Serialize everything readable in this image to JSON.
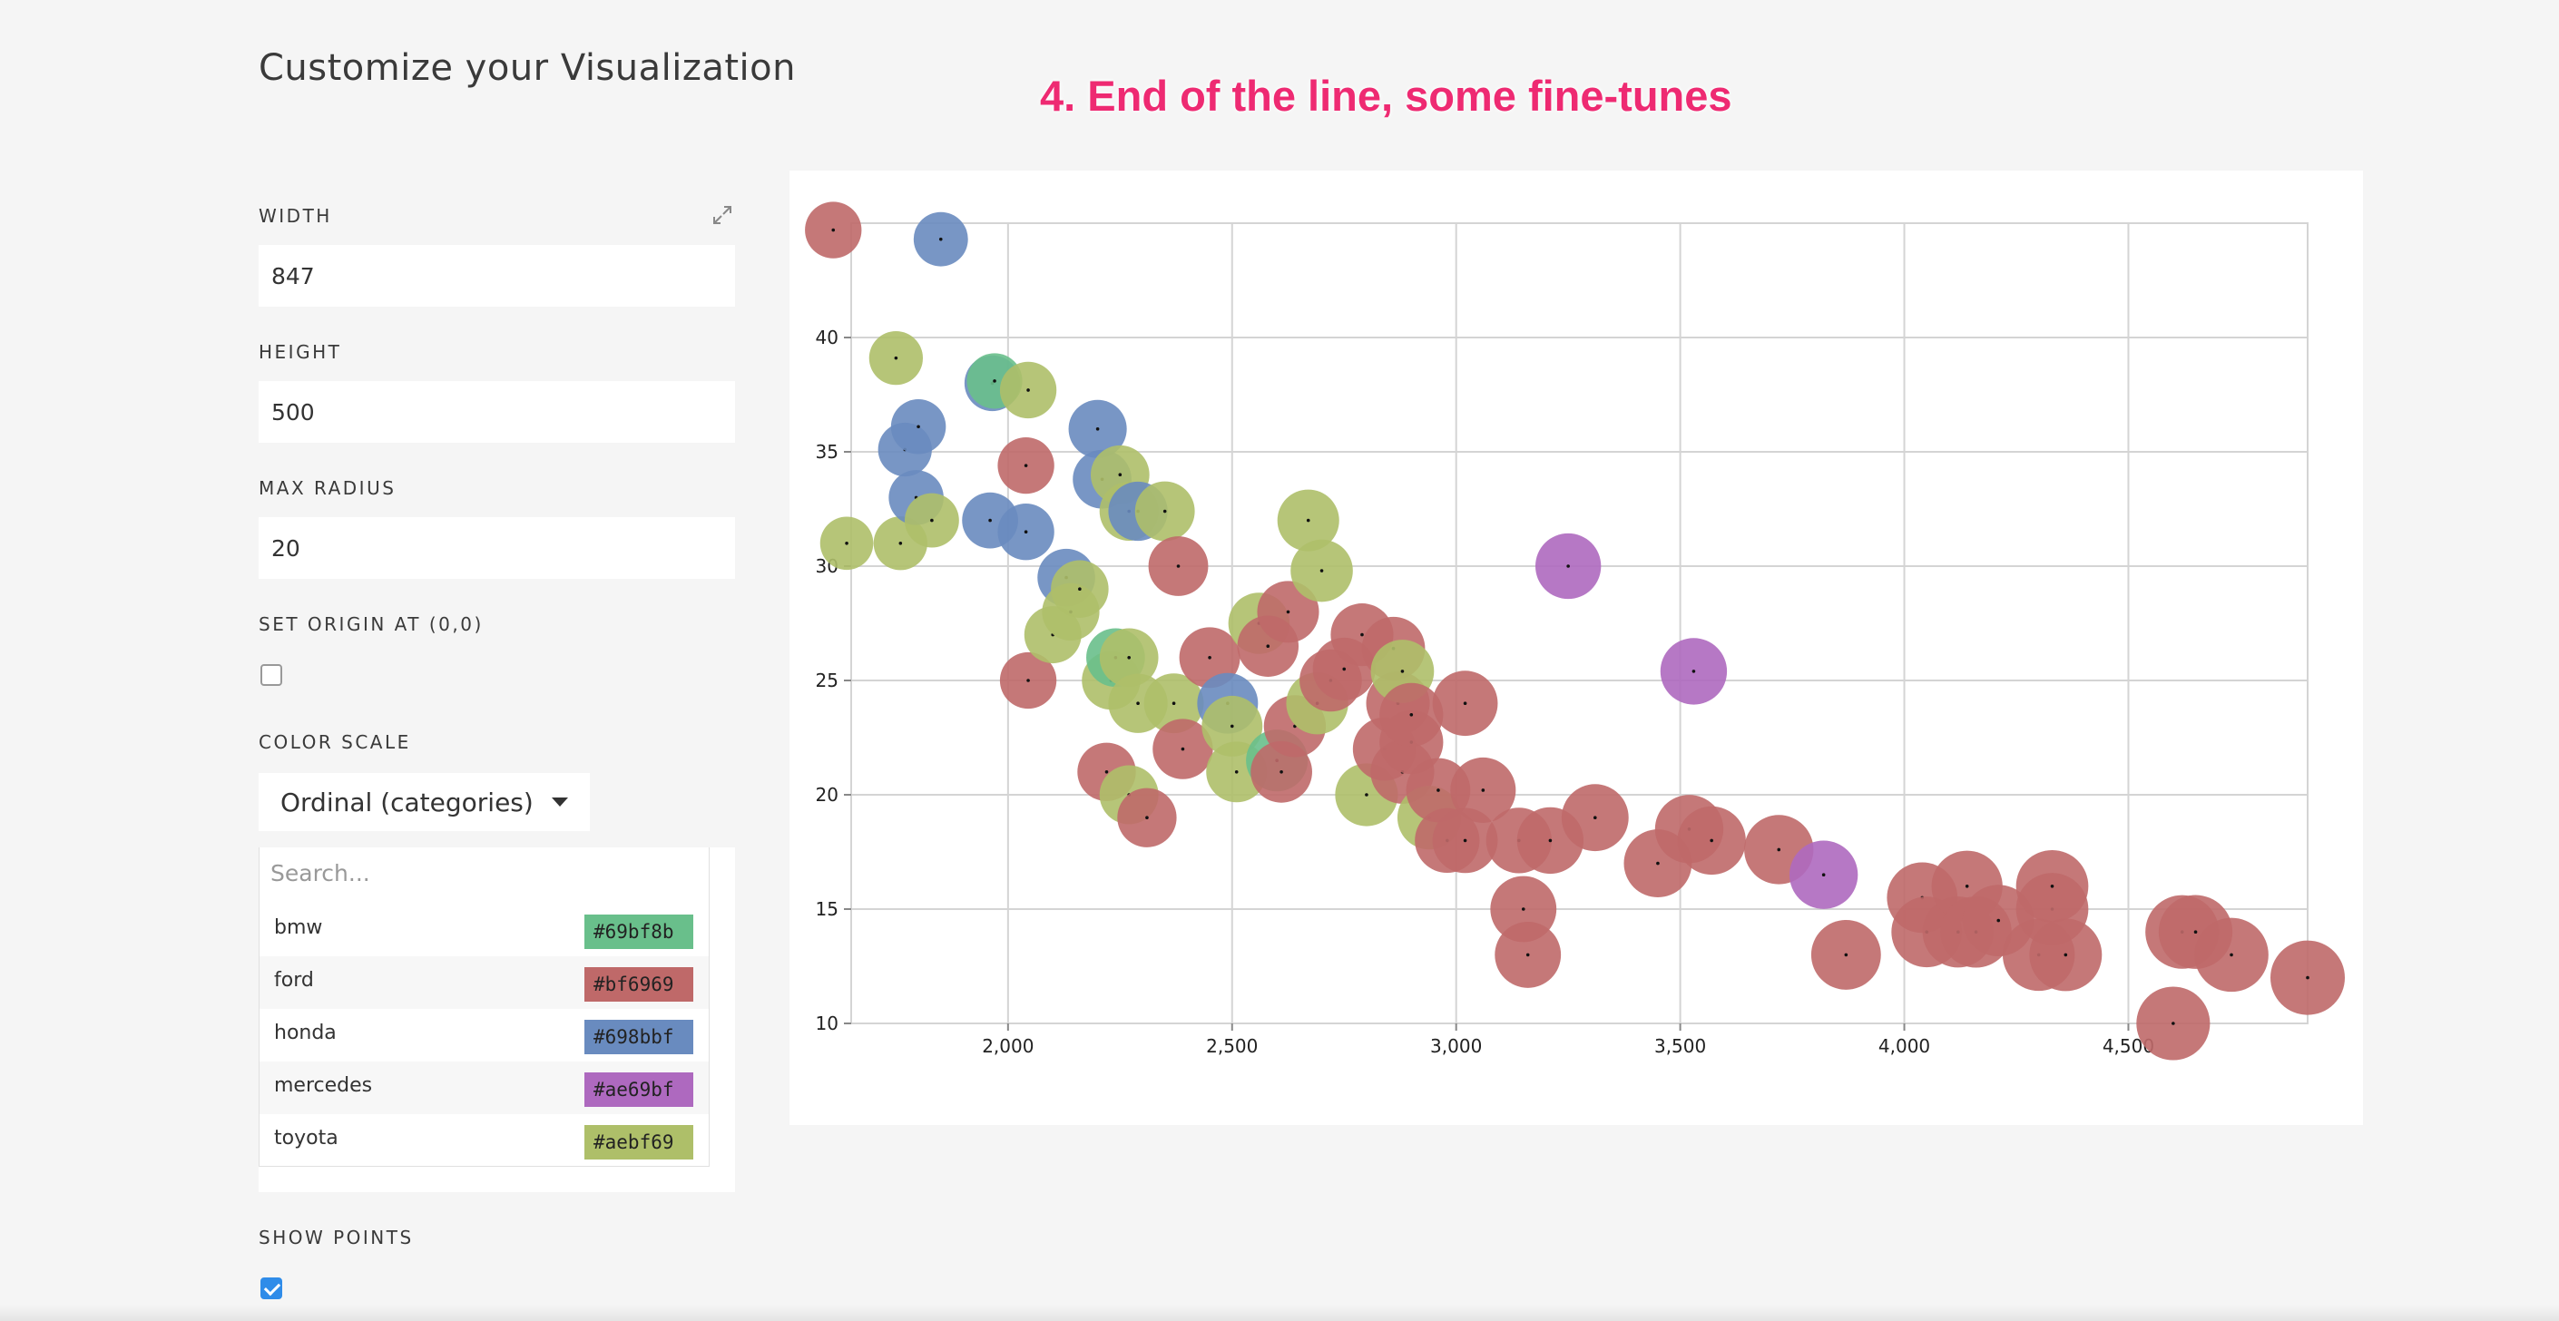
{
  "page": {
    "heading": "Customize your Visualization",
    "step_title": "4. End of the line, some fine-tunes"
  },
  "sidebar": {
    "width_label": "WIDTH",
    "width_value": "847",
    "height_label": "HEIGHT",
    "height_value": "500",
    "max_radius_label": "MAX RADIUS",
    "max_radius_value": "20",
    "origin_label": "SET ORIGIN AT (0,0)",
    "origin_checked": false,
    "color_scale_label": "COLOR SCALE",
    "color_scale_value": "Ordinal (categories)",
    "color_search_placeholder": "Search...",
    "colors": [
      {
        "name": "bmw",
        "hex": "#69bf8b"
      },
      {
        "name": "ford",
        "hex": "#bf6969"
      },
      {
        "name": "honda",
        "hex": "#698bbf"
      },
      {
        "name": "mercedes",
        "hex": "#ae69bf"
      },
      {
        "name": "toyota",
        "hex": "#aebf69"
      }
    ],
    "show_points_label": "SHOW POINTS",
    "show_points_checked": true
  },
  "icons": {
    "expand": "expand-icon",
    "dropdown": "chevron-down-icon",
    "checkmark": "check-icon"
  },
  "chart_data": {
    "type": "scatter",
    "title": "",
    "xlabel": "",
    "ylabel": "",
    "xlim": [
      1650,
      4900
    ],
    "ylim": [
      10,
      45
    ],
    "x_ticks": [
      "2,000",
      "2,500",
      "3,000",
      "3,500",
      "4,000",
      "4,500"
    ],
    "x_tick_values": [
      2000,
      2500,
      3000,
      3500,
      4000,
      4500
    ],
    "y_ticks": [
      "10",
      "15",
      "20",
      "25",
      "30",
      "35",
      "40"
    ],
    "y_tick_values": [
      10,
      15,
      20,
      25,
      30,
      35,
      40
    ],
    "grid": true,
    "radius_max": 20,
    "show_points": true,
    "series": [
      {
        "name": "bmw",
        "color": "#69bf8b",
        "points": [
          [
            1970,
            38.1,
            500
          ],
          [
            2240,
            26,
            560
          ],
          [
            2600,
            21.5,
            620
          ]
        ]
      },
      {
        "name": "honda",
        "color": "#698bbf",
        "points": [
          [
            1850,
            44.3,
            480
          ],
          [
            1770,
            35.1,
            470
          ],
          [
            1800,
            36.1,
            490
          ],
          [
            1795,
            33,
            490
          ],
          [
            1960,
            32,
            510
          ],
          [
            1965,
            38,
            505
          ],
          [
            2040,
            31.5,
            520
          ],
          [
            2130,
            29.5,
            540
          ],
          [
            2200,
            36,
            550
          ],
          [
            2210,
            33.8,
            560
          ],
          [
            2290,
            32.4,
            570
          ],
          [
            2490,
            24,
            600
          ]
        ]
      },
      {
        "name": "toyota",
        "color": "#aebf69",
        "points": [
          [
            1750,
            39.1,
            470
          ],
          [
            1640,
            31,
            460
          ],
          [
            1760,
            31,
            470
          ],
          [
            1830,
            32,
            480
          ],
          [
            2045,
            37.7,
            520
          ],
          [
            2160,
            29,
            540
          ],
          [
            2100,
            27,
            530
          ],
          [
            2140,
            28,
            535
          ],
          [
            2250,
            34,
            560
          ],
          [
            2270,
            32.4,
            565
          ],
          [
            2350,
            32.4,
            580
          ],
          [
            2230,
            25,
            555
          ],
          [
            2270,
            26,
            560
          ],
          [
            2290,
            24,
            570
          ],
          [
            2370,
            24,
            580
          ],
          [
            2500,
            23,
            600
          ],
          [
            2510,
            21,
            600
          ],
          [
            2560,
            27.5,
            610
          ],
          [
            2670,
            32,
            620
          ],
          [
            2700,
            29.8,
            630
          ],
          [
            2690,
            24,
            625
          ],
          [
            2800,
            20,
            640
          ],
          [
            2880,
            25.4,
            650
          ],
          [
            2940,
            19,
            660
          ],
          [
            2270,
            20,
            565
          ]
        ]
      },
      {
        "name": "mercedes",
        "color": "#ae69bf",
        "points": [
          [
            3250,
            30,
            700
          ],
          [
            3530,
            25.4,
            720
          ],
          [
            3820,
            16.5,
            760
          ]
        ]
      },
      {
        "name": "ford",
        "color": "#bf6969",
        "points": [
          [
            1610,
            44.7,
            520
          ],
          [
            2040,
            34.4,
            520
          ],
          [
            2045,
            25,
            520
          ],
          [
            2220,
            21,
            555
          ],
          [
            2310,
            19,
            570
          ],
          [
            2380,
            30,
            580
          ],
          [
            2390,
            22,
            590
          ],
          [
            2450,
            26,
            600
          ],
          [
            2580,
            26.5,
            610
          ],
          [
            2610,
            21,
            615
          ],
          [
            2625,
            28,
            620
          ],
          [
            2640,
            23,
            625
          ],
          [
            2720,
            25,
            630
          ],
          [
            2750,
            25.5,
            640
          ],
          [
            2790,
            27,
            640
          ],
          [
            2840,
            22,
            650
          ],
          [
            2860,
            26.4,
            650
          ],
          [
            2870,
            24,
            655
          ],
          [
            2880,
            21,
            660
          ],
          [
            2900,
            22.3,
            660
          ],
          [
            2900,
            23.5,
            660
          ],
          [
            2960,
            20.2,
            670
          ],
          [
            2980,
            18,
            680
          ],
          [
            3020,
            24,
            690
          ],
          [
            3020,
            18,
            690
          ],
          [
            3060,
            20.2,
            695
          ],
          [
            3140,
            18,
            700
          ],
          [
            3150,
            15,
            710
          ],
          [
            3160,
            13,
            710
          ],
          [
            3210,
            18,
            720
          ],
          [
            3310,
            19,
            730
          ],
          [
            3450,
            17,
            750
          ],
          [
            3520,
            18.5,
            760
          ],
          [
            3570,
            18,
            760
          ],
          [
            3720,
            17.6,
            780
          ],
          [
            3870,
            13,
            790
          ],
          [
            4040,
            15.5,
            810
          ],
          [
            4050,
            14,
            810
          ],
          [
            4120,
            14,
            820
          ],
          [
            4140,
            16,
            820
          ],
          [
            4160,
            14,
            825
          ],
          [
            4210,
            14.5,
            830
          ],
          [
            4300,
            13,
            845
          ],
          [
            4330,
            15,
            850
          ],
          [
            4330,
            16,
            850
          ],
          [
            4360,
            13,
            855
          ],
          [
            4600,
            10,
            880
          ],
          [
            4620,
            14,
            880
          ],
          [
            4650,
            14,
            885
          ],
          [
            4730,
            13,
            890
          ],
          [
            4900,
            12,
            900
          ]
        ]
      }
    ]
  }
}
